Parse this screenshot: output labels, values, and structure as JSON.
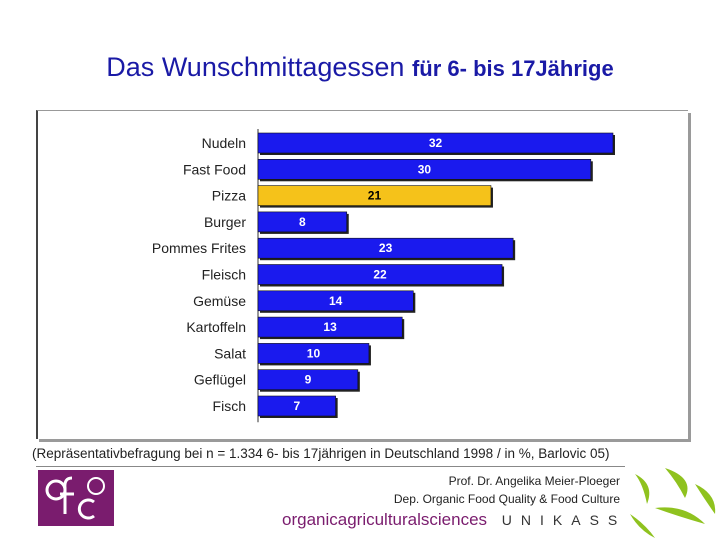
{
  "title_main": "Das Wunschmittagessen",
  "title_sub": "für 6- bis 17Jährige",
  "chart_data": {
    "type": "bar",
    "orientation": "horizontal",
    "categories": [
      "Nudeln",
      "Fast Food",
      "Pizza",
      "Burger",
      "Pommes Frites",
      "Fleisch",
      "Gemüse",
      "Kartoffeln",
      "Salat",
      "Geflügel",
      "Fisch"
    ],
    "values": [
      32,
      30,
      21,
      8,
      23,
      22,
      14,
      13,
      10,
      9,
      7
    ],
    "value_labels": [
      "32",
      "30",
      "21",
      "8",
      "23",
      "22",
      "14",
      "13",
      "10",
      "9",
      "7"
    ],
    "highlight_index": 2,
    "colors": {
      "bar": "#1a1aee",
      "highlight": "#f5c21a",
      "label_on_bar": "#ffffff",
      "label_on_highlight": "#000000"
    },
    "xlim": [
      0,
      32
    ],
    "grid": false,
    "title": "",
    "xlabel": "",
    "ylabel": ""
  },
  "caption": "(Repräsentativbefragung bei n = 1.334 6- bis 17jährigen in Deutschland 1998 / in %, Barlovic 05)",
  "credit": {
    "name": "Prof. Dr. Angelika Meier-Ploeger",
    "dept": "Dep. Organic Food Quality & Food Culture"
  },
  "footer": {
    "org": "organicagriculturalsciences",
    "uni": "UNIKASSEL"
  },
  "logos": {
    "left": "ofc-logo",
    "right": "kassel-green-logo",
    "left_text": "ofc"
  }
}
